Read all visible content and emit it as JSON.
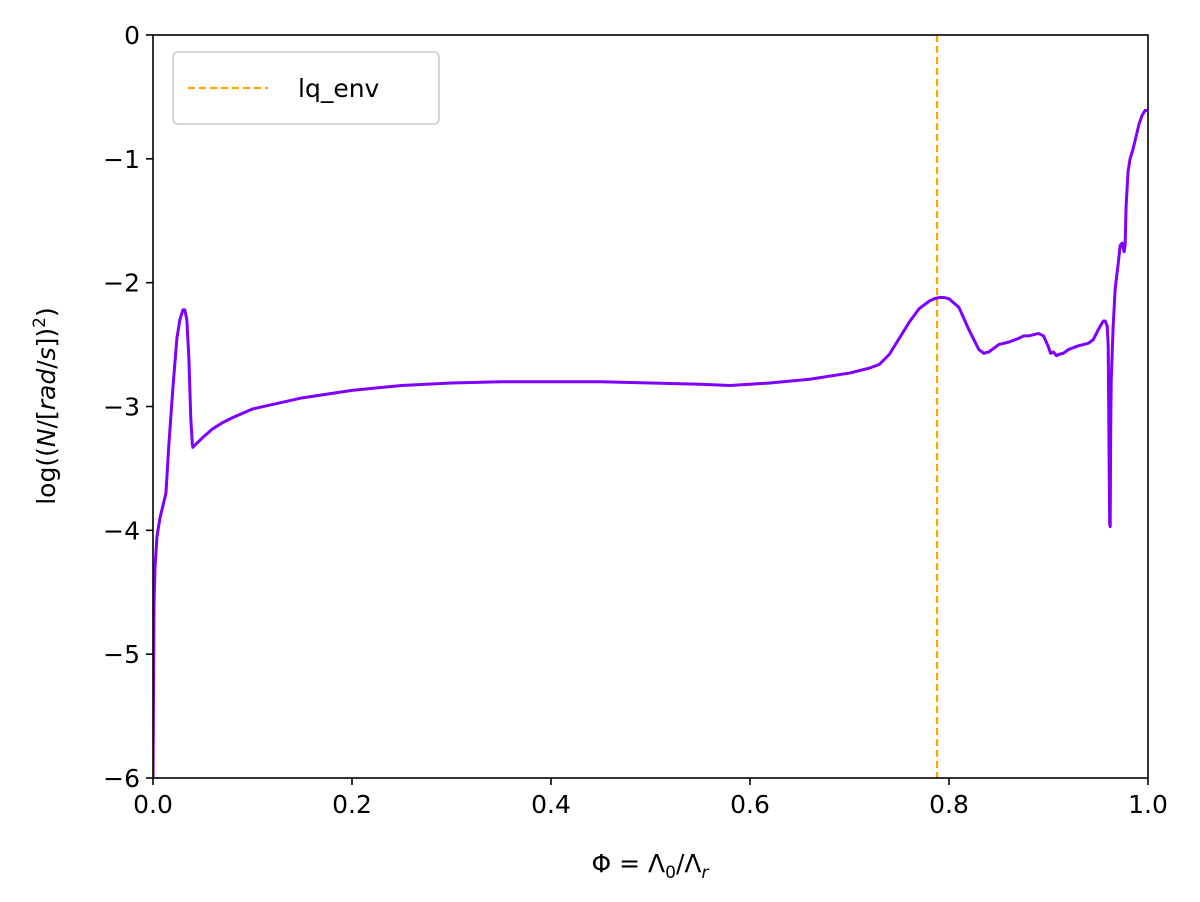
{
  "chart_data": {
    "type": "line",
    "title": "",
    "xlabel": "Φ = Λ₀/Λr",
    "ylabel": "log((N/[rad/s])²)",
    "xlim": [
      0.0,
      1.0
    ],
    "ylim": [
      -6,
      0
    ],
    "x_ticks": [
      0.0,
      0.2,
      0.4,
      0.6,
      0.8,
      1.0
    ],
    "x_tick_labels": [
      "0.0",
      "0.2",
      "0.4",
      "0.6",
      "0.8",
      "1.0"
    ],
    "y_ticks": [
      0,
      -1,
      -2,
      -3,
      -4,
      -5,
      -6
    ],
    "y_tick_labels": [
      "0",
      "−1",
      "−2",
      "−3",
      "−4",
      "−5",
      "−6"
    ],
    "grid": false,
    "legend_position": "top-left",
    "vlines": [
      {
        "name": "lq_env",
        "x": 0.788,
        "color": "#ffa500",
        "style": "dashed"
      }
    ],
    "series": [
      {
        "color": "#7f00ff",
        "x": [
          0.0,
          0.001,
          0.002,
          0.004,
          0.007,
          0.01,
          0.013,
          0.016,
          0.02,
          0.024,
          0.027,
          0.03,
          0.032,
          0.034,
          0.036,
          0.038,
          0.0395,
          0.04,
          0.05,
          0.06,
          0.07,
          0.08,
          0.1,
          0.15,
          0.2,
          0.25,
          0.3,
          0.35,
          0.4,
          0.45,
          0.5,
          0.55,
          0.58,
          0.62,
          0.66,
          0.7,
          0.72,
          0.73,
          0.74,
          0.75,
          0.76,
          0.77,
          0.78,
          0.785,
          0.79,
          0.795,
          0.8,
          0.81,
          0.82,
          0.83,
          0.835,
          0.84,
          0.85,
          0.86,
          0.87,
          0.875,
          0.88,
          0.89,
          0.895,
          0.9,
          0.902,
          0.905,
          0.908,
          0.91,
          0.915,
          0.92,
          0.93,
          0.94,
          0.945,
          0.95,
          0.955,
          0.957,
          0.959,
          0.96,
          0.961,
          0.9615,
          0.962,
          0.9625,
          0.963,
          0.965,
          0.967,
          0.97,
          0.972,
          0.974,
          0.975,
          0.976,
          0.977,
          0.978,
          0.98,
          0.982,
          0.985,
          0.988,
          0.991,
          0.994,
          0.997,
          1.0
        ],
        "y": [
          -6.0,
          -4.6,
          -4.3,
          -4.05,
          -3.9,
          -3.8,
          -3.7,
          -3.3,
          -2.85,
          -2.45,
          -2.3,
          -2.22,
          -2.22,
          -2.3,
          -2.6,
          -3.1,
          -3.3,
          -3.33,
          -3.25,
          -3.18,
          -3.13,
          -3.09,
          -3.02,
          -2.93,
          -2.87,
          -2.83,
          -2.81,
          -2.8,
          -2.8,
          -2.8,
          -2.81,
          -2.82,
          -2.83,
          -2.81,
          -2.78,
          -2.73,
          -2.69,
          -2.66,
          -2.58,
          -2.45,
          -2.32,
          -2.21,
          -2.15,
          -2.13,
          -2.12,
          -2.12,
          -2.13,
          -2.2,
          -2.38,
          -2.54,
          -2.57,
          -2.56,
          -2.5,
          -2.48,
          -2.45,
          -2.43,
          -2.43,
          -2.41,
          -2.43,
          -2.52,
          -2.57,
          -2.56,
          -2.59,
          -2.58,
          -2.57,
          -2.54,
          -2.51,
          -2.49,
          -2.46,
          -2.38,
          -2.31,
          -2.31,
          -2.35,
          -2.5,
          -3.5,
          -3.95,
          -3.97,
          -3.2,
          -2.8,
          -2.35,
          -2.05,
          -1.85,
          -1.7,
          -1.68,
          -1.72,
          -1.75,
          -1.7,
          -1.38,
          -1.1,
          -1.0,
          -0.92,
          -0.82,
          -0.72,
          -0.65,
          -0.61,
          -0.61
        ]
      }
    ]
  }
}
